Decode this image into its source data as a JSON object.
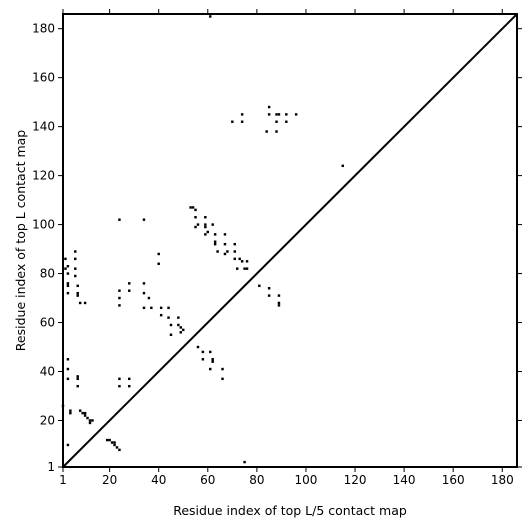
{
  "chart_data": {
    "type": "scatter",
    "xlabel": "Residue index of top L/5 contact map",
    "ylabel": "Residue index of top L contact map",
    "xlim": [
      1,
      186
    ],
    "ylim": [
      1,
      186
    ],
    "xticks": [
      1,
      20,
      40,
      60,
      80,
      100,
      120,
      140,
      160,
      180
    ],
    "yticks": [
      1,
      20,
      40,
      60,
      80,
      100,
      120,
      140,
      160,
      180
    ],
    "diagonal_line": true,
    "colors": {
      "points": "#000000",
      "line": "#000000",
      "frame": "#000000"
    },
    "points": [
      [
        1,
        26
      ],
      [
        4,
        24
      ],
      [
        4,
        23
      ],
      [
        8,
        24
      ],
      [
        9,
        23
      ],
      [
        10,
        22
      ],
      [
        10,
        23
      ],
      [
        11,
        21
      ],
      [
        12,
        20
      ],
      [
        12,
        19
      ],
      [
        13,
        20
      ],
      [
        19,
        12
      ],
      [
        20,
        12
      ],
      [
        21,
        11
      ],
      [
        22,
        11
      ],
      [
        22,
        10
      ],
      [
        23,
        9
      ],
      [
        24,
        8
      ],
      [
        3,
        45
      ],
      [
        3,
        41
      ],
      [
        3,
        37
      ],
      [
        3,
        10
      ],
      [
        7,
        38
      ],
      [
        7,
        37
      ],
      [
        7,
        34
      ],
      [
        24,
        37
      ],
      [
        24,
        34
      ],
      [
        28,
        37
      ],
      [
        28,
        34
      ],
      [
        2,
        86
      ],
      [
        2,
        82
      ],
      [
        3,
        83
      ],
      [
        3,
        80
      ],
      [
        3,
        76
      ],
      [
        3,
        75
      ],
      [
        3,
        72
      ],
      [
        6,
        89
      ],
      [
        6,
        86
      ],
      [
        6,
        82
      ],
      [
        6,
        79
      ],
      [
        7,
        75
      ],
      [
        7,
        72
      ],
      [
        7,
        71
      ],
      [
        8,
        68
      ],
      [
        10,
        68
      ],
      [
        24,
        102
      ],
      [
        24,
        73
      ],
      [
        24,
        70
      ],
      [
        24,
        67
      ],
      [
        28,
        76
      ],
      [
        28,
        73
      ],
      [
        34,
        102
      ],
      [
        34,
        76
      ],
      [
        34,
        72
      ],
      [
        34,
        66
      ],
      [
        36,
        70
      ],
      [
        37,
        66
      ],
      [
        40,
        88
      ],
      [
        40,
        84
      ],
      [
        41,
        66
      ],
      [
        41,
        63
      ],
      [
        44,
        66
      ],
      [
        44,
        62
      ],
      [
        45,
        59
      ],
      [
        45,
        55
      ],
      [
        48,
        62
      ],
      [
        48,
        59
      ],
      [
        49,
        58
      ],
      [
        49,
        56
      ],
      [
        50,
        57
      ],
      [
        53,
        107
      ],
      [
        54,
        107
      ],
      [
        55,
        106
      ],
      [
        55,
        103
      ],
      [
        55,
        99
      ],
      [
        56,
        100
      ],
      [
        56,
        50
      ],
      [
        58,
        45
      ],
      [
        58,
        48
      ],
      [
        59,
        103
      ],
      [
        59,
        100
      ],
      [
        59,
        99
      ],
      [
        59,
        96
      ],
      [
        60,
        97
      ],
      [
        61,
        48
      ],
      [
        61,
        41
      ],
      [
        62,
        45
      ],
      [
        62,
        44
      ],
      [
        62,
        100
      ],
      [
        63,
        96
      ],
      [
        63,
        93
      ],
      [
        63,
        92
      ],
      [
        64,
        89
      ],
      [
        66,
        41
      ],
      [
        66,
        37
      ],
      [
        67,
        96
      ],
      [
        67,
        92
      ],
      [
        67,
        88
      ],
      [
        68,
        89
      ],
      [
        70,
        142
      ],
      [
        71,
        92
      ],
      [
        71,
        89
      ],
      [
        71,
        86
      ],
      [
        72,
        82
      ],
      [
        73,
        86
      ],
      [
        74,
        145
      ],
      [
        74,
        142
      ],
      [
        74,
        85
      ],
      [
        75,
        82
      ],
      [
        75,
        3
      ],
      [
        76,
        82
      ],
      [
        76,
        85
      ],
      [
        81,
        75
      ],
      [
        84,
        138
      ],
      [
        85,
        148
      ],
      [
        85,
        145
      ],
      [
        85,
        74
      ],
      [
        85,
        71
      ],
      [
        88,
        145
      ],
      [
        88,
        142
      ],
      [
        88,
        138
      ],
      [
        89,
        145
      ],
      [
        89,
        71
      ],
      [
        89,
        68
      ],
      [
        89,
        67
      ],
      [
        92,
        145
      ],
      [
        92,
        142
      ],
      [
        96,
        145
      ],
      [
        115,
        124
      ],
      [
        61,
        185
      ]
    ]
  }
}
